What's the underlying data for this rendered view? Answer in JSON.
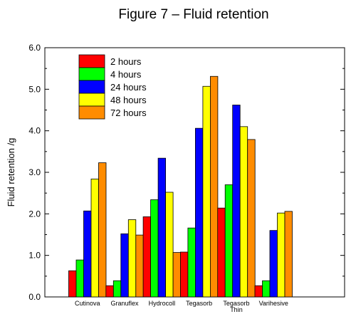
{
  "chart_data": {
    "type": "bar",
    "title": "Figure 7 – Fluid retention",
    "xlabel": "",
    "ylabel": "Fluid retention /g",
    "ylim": [
      0,
      6
    ],
    "yticks": [
      "0.0",
      "1.0",
      "2.0",
      "3.0",
      "4.0",
      "5.0",
      "6.0"
    ],
    "categories": [
      [
        "Cutinova"
      ],
      [
        "Granuflex"
      ],
      [
        "Hydrocoll"
      ],
      [
        "Tegasorb"
      ],
      [
        "Tegasorb",
        "Thin"
      ],
      [
        "Varihesive"
      ]
    ],
    "series": [
      {
        "name": "2 hours",
        "color": "#ff0000",
        "values": [
          0.63,
          0.27,
          1.93,
          1.08,
          2.14,
          0.27
        ]
      },
      {
        "name": "4 hours",
        "color": "#00ff00",
        "values": [
          0.89,
          0.39,
          2.34,
          1.66,
          2.7,
          0.39
        ]
      },
      {
        "name": "24 hours",
        "color": "#0000ff",
        "values": [
          2.07,
          1.52,
          3.34,
          4.06,
          4.62,
          1.6
        ]
      },
      {
        "name": "48 hours",
        "color": "#ffff00",
        "values": [
          2.84,
          1.86,
          2.52,
          5.07,
          4.1,
          2.02
        ]
      },
      {
        "name": "72 hours",
        "color": "#ff8c00",
        "values": [
          3.23,
          1.49,
          1.07,
          5.31,
          3.79,
          2.06
        ]
      }
    ],
    "legend_position": "top-left",
    "grid": false
  }
}
